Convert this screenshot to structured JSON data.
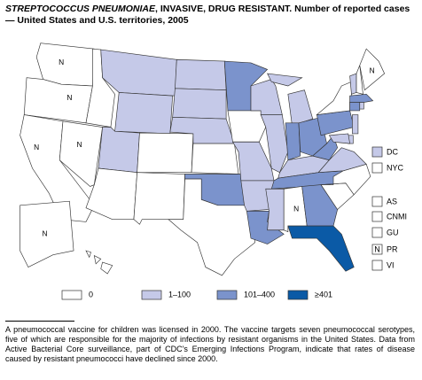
{
  "title_italic": "STREPTOCOCCUS PNEUMONIAE",
  "title_rest": ", INVASIVE, DRUG RESISTANT. Number of reported cases — United States and U.S. territories, 2005",
  "legend": [
    {
      "label": "0",
      "color": "#ffffff"
    },
    {
      "label": "1–100",
      "color": "#c5c9e8"
    },
    {
      "label": "101–400",
      "color": "#7b93cc"
    },
    {
      "label": "≥401",
      "color": "#0b5aa6"
    }
  ],
  "regions": [
    {
      "class": 0,
      "label": "N"
    },
    {
      "class": 0,
      "label": "N"
    },
    {
      "class": 0,
      "label": "N"
    },
    {
      "class": 0,
      "label": "N"
    },
    {
      "class": 0
    },
    {
      "class": 1
    },
    {
      "class": 1
    },
    {
      "class": 1
    },
    {
      "class": 0
    },
    {
      "class": 0
    },
    {
      "class": 0
    },
    {
      "class": 1
    },
    {
      "class": 1
    },
    {
      "class": 1
    },
    {
      "class": 0
    },
    {
      "class": 2
    },
    {
      "class": 0
    },
    {
      "class": 2
    },
    {
      "class": 0
    },
    {
      "class": 1
    },
    {
      "class": 1
    },
    {
      "class": 2
    },
    {
      "class": 1
    },
    {
      "class": 1
    },
    {
      "class": 1
    },
    {
      "class": 2
    },
    {
      "class": 2
    },
    {
      "class": 1
    },
    {
      "class": 2
    },
    {
      "class": 1
    },
    {
      "class": 0,
      "label": "N"
    },
    {
      "class": 2
    },
    {
      "class": 3
    },
    {
      "class": 0
    },
    {
      "class": 0
    },
    {
      "class": 1
    },
    {
      "class": 2
    },
    {
      "class": 2
    },
    {
      "class": 0
    },
    {
      "class": 1
    },
    {
      "class": 0
    },
    {
      "class": 0,
      "label": "N"
    },
    {
      "class": 2
    },
    {
      "class": 2
    },
    {
      "class": 1
    },
    {
      "class": 1
    },
    {
      "class": 1
    },
    {
      "class": 1
    },
    {
      "class": 0,
      "label": "N"
    },
    {
      "class": 0
    }
  ],
  "territories": [
    {
      "name": "DC",
      "class": 1
    },
    {
      "name": "NYC",
      "class": 0
    },
    {
      "name": "AS",
      "class": 0
    },
    {
      "name": "CNMI",
      "class": 0
    },
    {
      "name": "GU",
      "class": 0
    },
    {
      "name": "PR",
      "class": 0,
      "label": "N"
    },
    {
      "name": "VI",
      "class": 0
    }
  ],
  "footnote": "A pneumococcal vaccine for children was licensed in 2000. The vaccine targets seven pneumococcal serotypes, five of which are responsible for the majority of infections by resistant organisms in the United States. Data from Active Bacterial Core surveillance, part of CDC's Emerging Infections Program, indicate that rates of disease caused by resistant pneumococci have declined since 2000."
}
